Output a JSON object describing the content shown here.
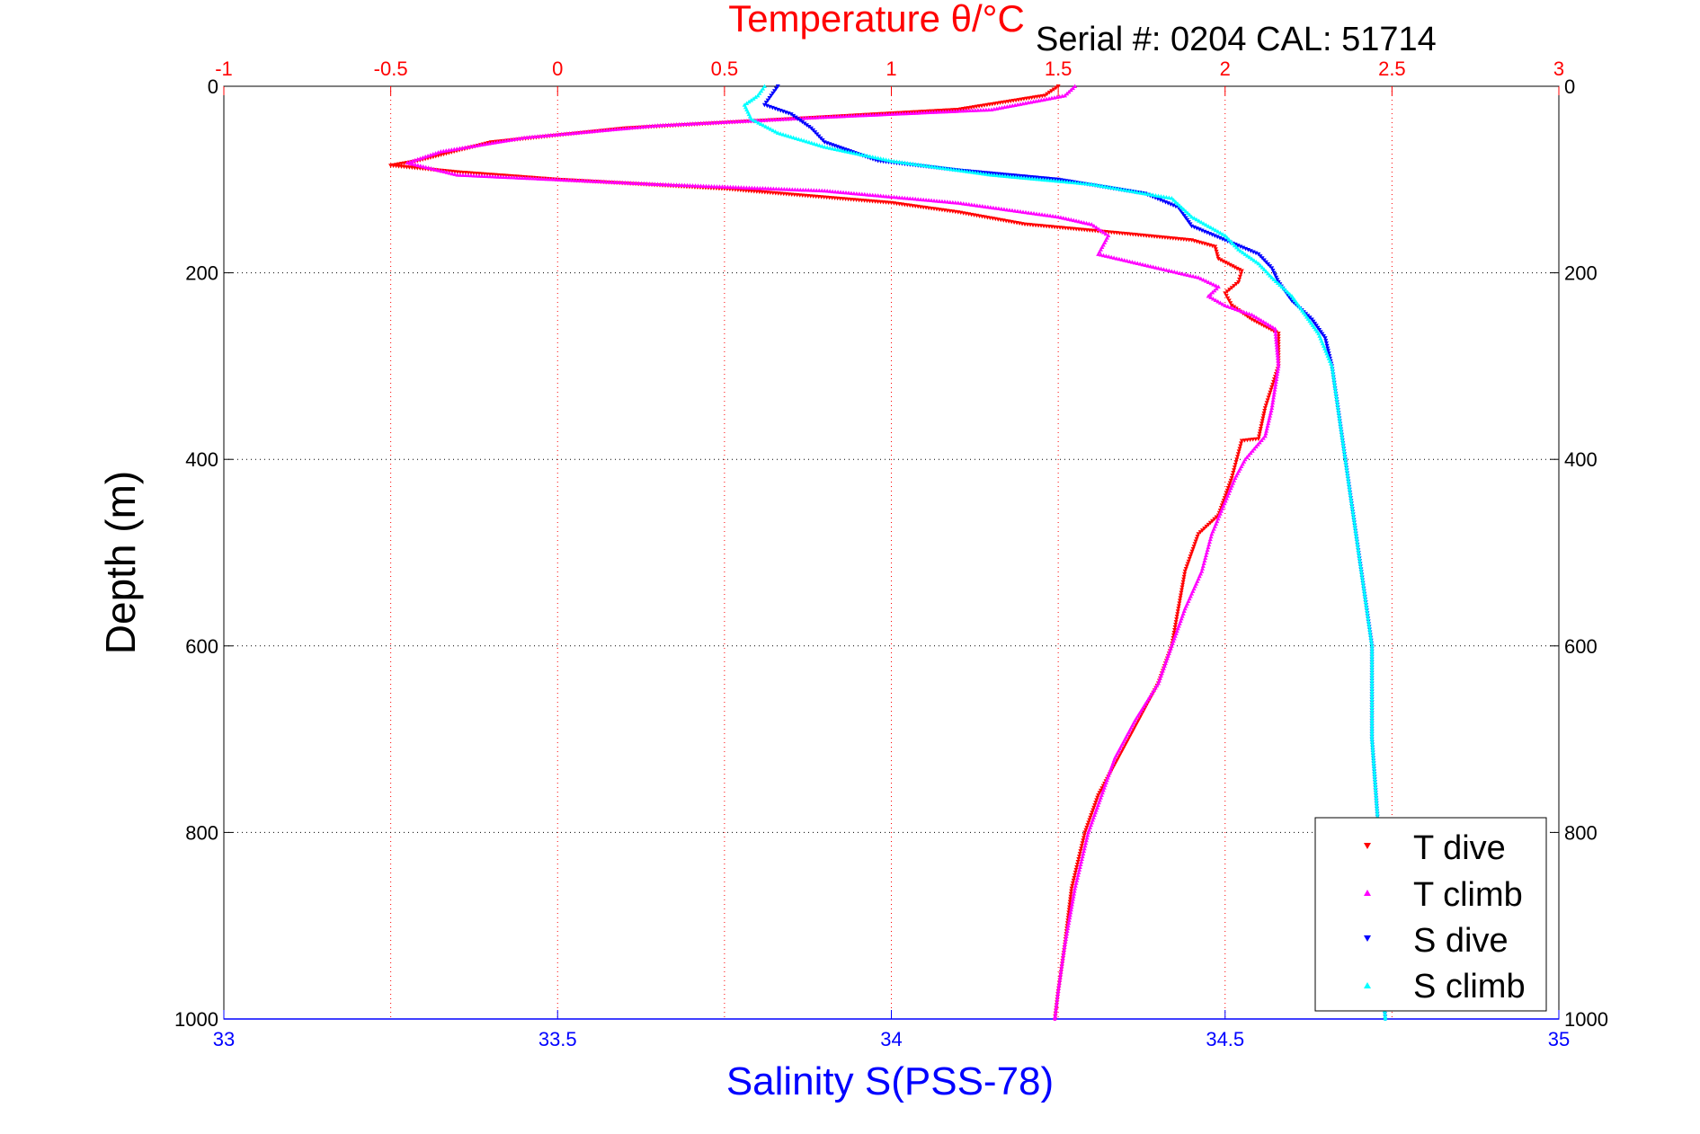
{
  "header": {
    "top_title": "Temperature θ/°C",
    "serial": "Serial #: 0204   CAL: 51714"
  },
  "axes": {
    "ylabel": "Depth (m)",
    "xlabel": "Salinity S(PSS-78)"
  },
  "legend": {
    "items": [
      {
        "label": "T dive",
        "color": "#ff0000",
        "marker": "triangle-down"
      },
      {
        "label": "T climb",
        "color": "#ff00ff",
        "marker": "triangle-up"
      },
      {
        "label": "S dive",
        "color": "#0000ff",
        "marker": "triangle-down"
      },
      {
        "label": "S climb",
        "color": "#00ffff",
        "marker": "triangle-up"
      }
    ]
  },
  "colors": {
    "temperature_axis": "#ff0000",
    "salinity_axis": "#0000ff",
    "depth_axis": "#000000",
    "grid": "#000000"
  },
  "chart_data": {
    "type": "scatter",
    "title": "Temperature θ/°C",
    "annotation": "Serial #: 0204   CAL: 51714",
    "ylabel": "Depth (m)",
    "xlabel": "Salinity S(PSS-78)",
    "y_axis": {
      "label": "Depth (m)",
      "range": [
        0,
        1000
      ],
      "reversed": true,
      "ticks": [
        "0",
        "200",
        "400",
        "600",
        "800",
        "1000"
      ]
    },
    "x_bottom": {
      "label": "Salinity S(PSS-78)",
      "range": [
        33,
        35
      ],
      "ticks": [
        "33",
        "33.5",
        "34",
        "34.5",
        "35"
      ]
    },
    "x_top": {
      "label": "Temperature θ/°C",
      "range": [
        -1,
        3
      ],
      "ticks": [
        "-1",
        "-0.5",
        "0",
        "0.5",
        "1",
        "1.5",
        "2",
        "2.5",
        "3"
      ]
    },
    "grid": true,
    "legend_position": "bottom-right",
    "series": [
      {
        "name": "T dive",
        "axis": "temperature",
        "color": "#ff0000",
        "marker": "triangle-down",
        "points": [
          [
            1.5,
            0
          ],
          [
            1.46,
            10
          ],
          [
            1.2,
            25
          ],
          [
            0.7,
            35
          ],
          [
            0.2,
            45
          ],
          [
            -0.2,
            60
          ],
          [
            -0.42,
            80
          ],
          [
            -0.5,
            85
          ],
          [
            -0.3,
            92
          ],
          [
            0.0,
            100
          ],
          [
            0.5,
            110
          ],
          [
            1.0,
            125
          ],
          [
            1.2,
            135
          ],
          [
            1.4,
            148
          ],
          [
            1.7,
            158
          ],
          [
            1.9,
            165
          ],
          [
            1.97,
            172
          ],
          [
            1.98,
            185
          ],
          [
            2.05,
            198
          ],
          [
            2.04,
            210
          ],
          [
            2.0,
            222
          ],
          [
            2.02,
            235
          ],
          [
            2.08,
            250
          ],
          [
            2.16,
            265
          ],
          [
            2.16,
            300
          ],
          [
            2.12,
            345
          ],
          [
            2.1,
            378
          ],
          [
            2.05,
            380
          ],
          [
            2.02,
            420
          ],
          [
            1.98,
            460
          ],
          [
            1.92,
            480
          ],
          [
            1.88,
            520
          ],
          [
            1.86,
            560
          ],
          [
            1.84,
            600
          ],
          [
            1.8,
            640
          ],
          [
            1.74,
            680
          ],
          [
            1.68,
            720
          ],
          [
            1.62,
            760
          ],
          [
            1.58,
            800
          ],
          [
            1.54,
            860
          ],
          [
            1.52,
            920
          ],
          [
            1.5,
            970
          ],
          [
            1.49,
            1000
          ]
        ]
      },
      {
        "name": "T climb",
        "axis": "temperature",
        "color": "#ff00ff",
        "marker": "triangle-up",
        "points": [
          [
            1.55,
            0
          ],
          [
            1.52,
            10
          ],
          [
            1.3,
            25
          ],
          [
            0.8,
            33
          ],
          [
            0.3,
            42
          ],
          [
            -0.1,
            55
          ],
          [
            -0.35,
            70
          ],
          [
            -0.45,
            82
          ],
          [
            -0.3,
            95
          ],
          [
            0.3,
            105
          ],
          [
            0.8,
            112
          ],
          [
            1.2,
            125
          ],
          [
            1.5,
            140
          ],
          [
            1.6,
            148
          ],
          [
            1.65,
            160
          ],
          [
            1.62,
            180
          ],
          [
            1.8,
            195
          ],
          [
            1.92,
            205
          ],
          [
            1.98,
            215
          ],
          [
            1.95,
            225
          ],
          [
            2.0,
            235
          ],
          [
            2.08,
            245
          ],
          [
            2.15,
            260
          ],
          [
            2.16,
            300
          ],
          [
            2.14,
            345
          ],
          [
            2.12,
            375
          ],
          [
            2.06,
            400
          ],
          [
            2.03,
            420
          ],
          [
            1.96,
            480
          ],
          [
            1.93,
            520
          ],
          [
            1.88,
            560
          ],
          [
            1.84,
            600
          ],
          [
            1.8,
            640
          ],
          [
            1.73,
            680
          ],
          [
            1.67,
            720
          ],
          [
            1.63,
            760
          ],
          [
            1.59,
            800
          ],
          [
            1.55,
            860
          ],
          [
            1.52,
            920
          ],
          [
            1.5,
            970
          ],
          [
            1.49,
            1000
          ]
        ]
      },
      {
        "name": "S dive",
        "axis": "salinity",
        "color": "#0000ff",
        "marker": "triangle-down",
        "points": [
          [
            33.83,
            0
          ],
          [
            33.82,
            10
          ],
          [
            33.81,
            20
          ],
          [
            33.85,
            30
          ],
          [
            33.88,
            45
          ],
          [
            33.9,
            60
          ],
          [
            33.98,
            80
          ],
          [
            34.1,
            90
          ],
          [
            34.25,
            100
          ],
          [
            34.38,
            115
          ],
          [
            34.43,
            130
          ],
          [
            34.45,
            150
          ],
          [
            34.5,
            165
          ],
          [
            34.55,
            180
          ],
          [
            34.57,
            195
          ],
          [
            34.58,
            210
          ],
          [
            34.6,
            230
          ],
          [
            34.63,
            250
          ],
          [
            34.65,
            270
          ],
          [
            34.66,
            300
          ],
          [
            34.67,
            350
          ],
          [
            34.68,
            400
          ],
          [
            34.69,
            450
          ],
          [
            34.7,
            500
          ],
          [
            34.71,
            550
          ],
          [
            34.72,
            600
          ],
          [
            34.72,
            700
          ],
          [
            34.73,
            800
          ],
          [
            34.73,
            900
          ],
          [
            34.74,
            1000
          ]
        ]
      },
      {
        "name": "S climb",
        "axis": "salinity",
        "color": "#00ffff",
        "marker": "triangle-up",
        "points": [
          [
            33.81,
            0
          ],
          [
            33.8,
            10
          ],
          [
            33.78,
            20
          ],
          [
            33.79,
            35
          ],
          [
            33.83,
            50
          ],
          [
            33.9,
            65
          ],
          [
            34.0,
            80
          ],
          [
            34.15,
            95
          ],
          [
            34.3,
            105
          ],
          [
            34.42,
            120
          ],
          [
            34.45,
            140
          ],
          [
            34.5,
            160
          ],
          [
            34.52,
            175
          ],
          [
            34.55,
            190
          ],
          [
            34.57,
            205
          ],
          [
            34.6,
            225
          ],
          [
            34.62,
            245
          ],
          [
            34.64,
            265
          ],
          [
            34.66,
            300
          ],
          [
            34.67,
            350
          ],
          [
            34.68,
            400
          ],
          [
            34.69,
            450
          ],
          [
            34.7,
            500
          ],
          [
            34.71,
            550
          ],
          [
            34.72,
            600
          ],
          [
            34.72,
            700
          ],
          [
            34.73,
            800
          ],
          [
            34.73,
            900
          ],
          [
            34.74,
            1000
          ]
        ]
      }
    ]
  }
}
